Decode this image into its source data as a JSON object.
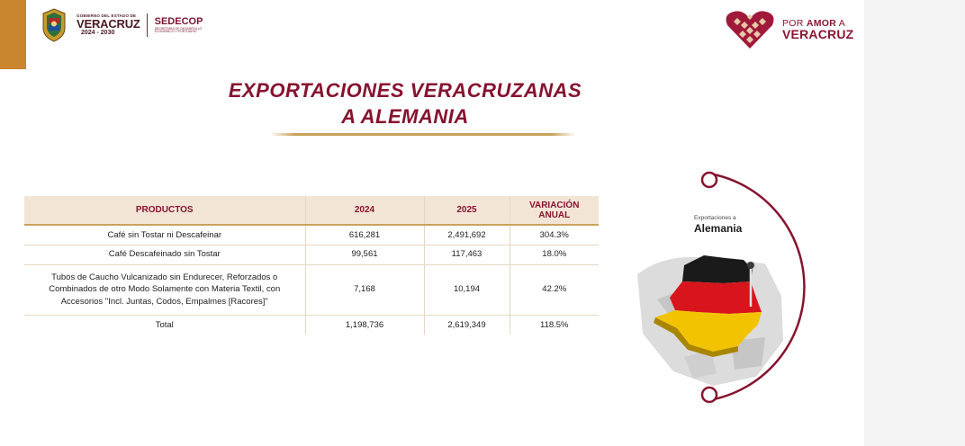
{
  "header": {
    "gov_line1": "GOBIERNO DEL ESTADO DE",
    "gov_state": "VERACRUZ",
    "gov_years": "2024 - 2030",
    "agency_name": "SEDECOP",
    "agency_sub": "SECRETARÍA DE DESARROLLO ECONÓMICO Y PORTUARIO",
    "brand_line1_pre": "POR ",
    "brand_line1_bold": "AMOR",
    "brand_line1_post": " A",
    "brand_line2": "VERACRUZ"
  },
  "title": {
    "line1": "EXPORTACIONES VERACRUZANAS",
    "line2": "A ALEMANIA"
  },
  "table": {
    "headers": [
      "PRODUCTOS",
      "2024",
      "2025",
      "VARIACIÓN ANUAL"
    ],
    "rows": [
      [
        "Café sin Tostar ni Descafeinar",
        "616,281",
        "2,491,692",
        "304.3%"
      ],
      [
        "Café Descafeinado sin Tostar",
        "99,561",
        "117,463",
        "18.0%"
      ],
      [
        "Tubos de Caucho Vulcanizado sin Endurecer, Reforzados o Combinados de otro Modo Solamente con Materia Textil, con Accesorios \"Incl. Juntas, Codos, Empalmes [Racores]\"",
        "7,168",
        "10,194",
        "42.2%"
      ],
      [
        "Total",
        "1,198,736",
        "2,619,349",
        "118.5%"
      ]
    ]
  },
  "map": {
    "caption_small": "Exportaciones a",
    "caption_big": "Alemania",
    "flag_colors": [
      "#1a1a1a",
      "#d8141c",
      "#f2c300"
    ]
  },
  "colors": {
    "accent": "#86132f",
    "gold": "#c9a25c",
    "header_bg": "#f3e5d6",
    "corner_tab": "#c9862f"
  }
}
